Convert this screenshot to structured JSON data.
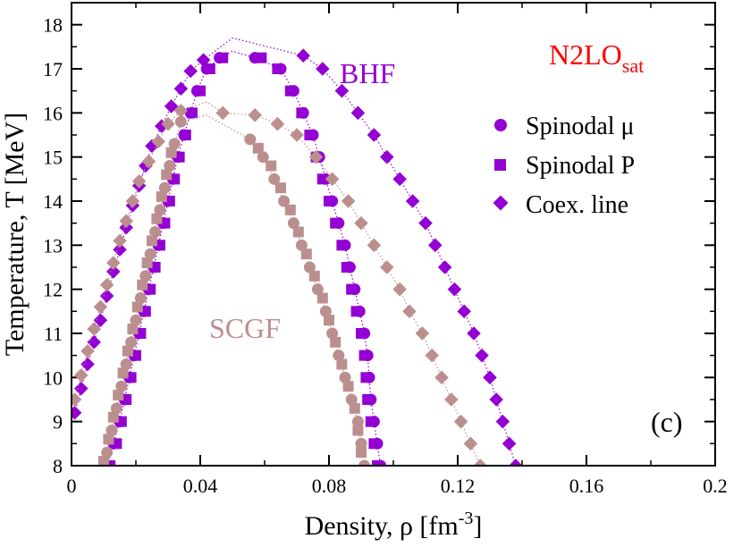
{
  "chart_data": {
    "type": "scatter",
    "title": "",
    "xlabel": "Density, ρ [fm",
    "xlabel_sup": "-3",
    "xlabel_end": "]",
    "ylabel": "Temperature, T [MeV]",
    "xlim": [
      0,
      0.2
    ],
    "ylim": [
      8,
      18.5
    ],
    "x_ticks": [
      0,
      0.04,
      0.08,
      0.12,
      0.16,
      0.2
    ],
    "x_tick_labels": [
      "0",
      "0.04",
      "0.08",
      "0.12",
      "0.16",
      "0.2"
    ],
    "y_ticks": [
      8,
      9,
      10,
      11,
      12,
      13,
      14,
      15,
      16,
      17,
      18
    ],
    "y_tick_labels": [
      "8",
      "9",
      "10",
      "11",
      "12",
      "13",
      "14",
      "15",
      "16",
      "17",
      "18"
    ],
    "interaction": "N2LO",
    "interaction_sub": "sat",
    "panel_label": "(c)",
    "legend": [
      {
        "label": "Spinodal μ",
        "marker": "circle"
      },
      {
        "label": "Spinodal P",
        "marker": "square"
      },
      {
        "label": "Coex. line",
        "marker": "diamond"
      }
    ],
    "curves": [
      {
        "name": "BHF",
        "color": "#9400D3",
        "critical_point": {
          "rho": 0.05,
          "T": 17.7
        },
        "spinodal_mu": {
          "left": [
            [
              0.011,
              8
            ],
            [
              0.013,
              8.5
            ],
            [
              0.015,
              9
            ],
            [
              0.0165,
              9.5
            ],
            [
              0.018,
              10
            ],
            [
              0.0195,
              10.5
            ],
            [
              0.021,
              11
            ],
            [
              0.0225,
              11.5
            ],
            [
              0.024,
              12
            ],
            [
              0.0255,
              12.5
            ],
            [
              0.027,
              13
            ],
            [
              0.0285,
              13.5
            ],
            [
              0.03,
              14
            ],
            [
              0.0315,
              14.5
            ],
            [
              0.033,
              15
            ],
            [
              0.035,
              15.5
            ],
            [
              0.037,
              16
            ],
            [
              0.039,
              16.5
            ],
            [
              0.042,
              17
            ],
            [
              0.046,
              17.25
            ]
          ],
          "right": [
            [
              0.096,
              8
            ],
            [
              0.095,
              8.5
            ],
            [
              0.094,
              9
            ],
            [
              0.093,
              9.5
            ],
            [
              0.0925,
              10
            ],
            [
              0.092,
              10.5
            ],
            [
              0.091,
              11
            ],
            [
              0.0895,
              11.5
            ],
            [
              0.088,
              12
            ],
            [
              0.0865,
              12.5
            ],
            [
              0.085,
              13
            ],
            [
              0.083,
              13.5
            ],
            [
              0.081,
              14
            ],
            [
              0.079,
              14.5
            ],
            [
              0.077,
              15
            ],
            [
              0.075,
              15.5
            ],
            [
              0.072,
              16
            ],
            [
              0.069,
              16.5
            ],
            [
              0.065,
              17
            ],
            [
              0.057,
              17.25
            ]
          ]
        },
        "spinodal_P": {
          "left": [
            [
              0.012,
              8
            ],
            [
              0.014,
              8.5
            ],
            [
              0.0155,
              9
            ],
            [
              0.017,
              9.5
            ],
            [
              0.0185,
              10
            ],
            [
              0.02,
              10.5
            ],
            [
              0.0215,
              11
            ],
            [
              0.023,
              11.5
            ],
            [
              0.0245,
              12
            ],
            [
              0.026,
              12.5
            ],
            [
              0.0275,
              13
            ],
            [
              0.029,
              13.5
            ],
            [
              0.0305,
              14
            ],
            [
              0.032,
              14.5
            ],
            [
              0.0335,
              15
            ],
            [
              0.0355,
              15.5
            ],
            [
              0.0375,
              16
            ],
            [
              0.04,
              16.5
            ],
            [
              0.043,
              17
            ],
            [
              0.047,
              17.25
            ]
          ],
          "right": [
            [
              0.095,
              8
            ],
            [
              0.094,
              8.5
            ],
            [
              0.093,
              9
            ],
            [
              0.092,
              9.5
            ],
            [
              0.0915,
              10
            ],
            [
              0.091,
              10.5
            ],
            [
              0.09,
              11
            ],
            [
              0.0885,
              11.5
            ],
            [
              0.087,
              12
            ],
            [
              0.0855,
              12.5
            ],
            [
              0.084,
              13
            ],
            [
              0.082,
              13.5
            ],
            [
              0.08,
              14
            ],
            [
              0.078,
              14.5
            ],
            [
              0.076,
              15
            ],
            [
              0.074,
              15.5
            ],
            [
              0.0715,
              16
            ],
            [
              0.068,
              16.5
            ],
            [
              0.064,
              17
            ],
            [
              0.059,
              17.25
            ]
          ]
        },
        "coexistence": {
          "left": [
            [
              0.001,
              9.2
            ],
            [
              0.003,
              9.75
            ],
            [
              0.005,
              10.3
            ],
            [
              0.007,
              10.8
            ],
            [
              0.009,
              11.3
            ],
            [
              0.011,
              11.85
            ],
            [
              0.013,
              12.4
            ],
            [
              0.015,
              12.9
            ],
            [
              0.017,
              13.4
            ],
            [
              0.019,
              13.9
            ],
            [
              0.021,
              14.35
            ],
            [
              0.023,
              14.8
            ],
            [
              0.025,
              15.25
            ],
            [
              0.028,
              15.7
            ],
            [
              0.031,
              16.15
            ],
            [
              0.034,
              16.55
            ],
            [
              0.037,
              16.95
            ],
            [
              0.041,
              17.2
            ]
          ],
          "right": [
            [
              0.138,
              8
            ],
            [
              0.136,
              8.5
            ],
            [
              0.134,
              9
            ],
            [
              0.132,
              9.5
            ],
            [
              0.13,
              10
            ],
            [
              0.1275,
              10.5
            ],
            [
              0.125,
              11
            ],
            [
              0.122,
              11.5
            ],
            [
              0.119,
              12
            ],
            [
              0.116,
              12.5
            ],
            [
              0.113,
              13
            ],
            [
              0.11,
              13.5
            ],
            [
              0.106,
              14
            ],
            [
              0.102,
              14.5
            ],
            [
              0.098,
              15
            ],
            [
              0.094,
              15.5
            ],
            [
              0.089,
              16
            ],
            [
              0.084,
              16.5
            ],
            [
              0.078,
              17
            ],
            [
              0.072,
              17.3
            ]
          ]
        }
      },
      {
        "name": "SCGF",
        "color": "#BC8F8F",
        "critical_point": {
          "rho": 0.042,
          "T": 16.25
        },
        "spinodal_mu": {
          "left": [
            [
              0.011,
              8.3
            ],
            [
              0.0125,
              8.8
            ],
            [
              0.014,
              9.3
            ],
            [
              0.0155,
              9.8
            ],
            [
              0.017,
              10.3
            ],
            [
              0.0185,
              10.8
            ],
            [
              0.02,
              11.3
            ],
            [
              0.0215,
              11.8
            ],
            [
              0.023,
              12.3
            ],
            [
              0.0245,
              12.8
            ],
            [
              0.026,
              13.3
            ],
            [
              0.0275,
              13.8
            ],
            [
              0.029,
              14.3
            ],
            [
              0.0305,
              14.8
            ],
            [
              0.032,
              15.3
            ],
            [
              0.034,
              15.8
            ]
          ],
          "right": [
            [
              0.091,
              8
            ],
            [
              0.09,
              8.5
            ],
            [
              0.089,
              9
            ],
            [
              0.087,
              9.5
            ],
            [
              0.085,
              10
            ],
            [
              0.083,
              10.5
            ],
            [
              0.081,
              11
            ],
            [
              0.079,
              11.5
            ],
            [
              0.0765,
              12
            ],
            [
              0.074,
              12.5
            ],
            [
              0.0715,
              13
            ],
            [
              0.069,
              13.5
            ],
            [
              0.066,
              14
            ],
            [
              0.063,
              14.5
            ],
            [
              0.0595,
              15
            ],
            [
              0.0555,
              15.4
            ]
          ]
        },
        "spinodal_P": {
          "left": [
            [
              0.01,
              8.1
            ],
            [
              0.0115,
              8.6
            ],
            [
              0.013,
              9.1
            ],
            [
              0.0145,
              9.6
            ],
            [
              0.016,
              10.1
            ],
            [
              0.0175,
              10.6
            ],
            [
              0.019,
              11.1
            ],
            [
              0.0205,
              11.6
            ],
            [
              0.022,
              12.1
            ],
            [
              0.0235,
              12.6
            ],
            [
              0.025,
              13.1
            ],
            [
              0.0265,
              13.6
            ],
            [
              0.028,
              14.1
            ],
            [
              0.0295,
              14.6
            ],
            [
              0.031,
              15.1
            ]
          ],
          "right": [
            [
              0.09,
              8.3
            ],
            [
              0.089,
              8.8
            ],
            [
              0.088,
              9.3
            ],
            [
              0.086,
              9.8
            ],
            [
              0.084,
              10.3
            ],
            [
              0.082,
              10.8
            ],
            [
              0.08,
              11.3
            ],
            [
              0.078,
              11.8
            ],
            [
              0.0755,
              12.3
            ],
            [
              0.073,
              12.8
            ],
            [
              0.0705,
              13.3
            ],
            [
              0.068,
              13.8
            ],
            [
              0.065,
              14.3
            ],
            [
              0.062,
              14.8
            ],
            [
              0.058,
              15.2
            ]
          ]
        },
        "coexistence": {
          "left": [
            [
              0.001,
              9.5
            ],
            [
              0.003,
              10.05
            ],
            [
              0.005,
              10.6
            ],
            [
              0.007,
              11.1
            ],
            [
              0.009,
              11.6
            ],
            [
              0.011,
              12.1
            ],
            [
              0.013,
              12.6
            ],
            [
              0.015,
              13.1
            ],
            [
              0.017,
              13.55
            ],
            [
              0.019,
              14
            ],
            [
              0.021,
              14.45
            ],
            [
              0.024,
              14.9
            ],
            [
              0.027,
              15.35
            ],
            [
              0.03,
              15.75
            ],
            [
              0.034,
              16.05
            ]
          ],
          "right": [
            [
              0.127,
              8
            ],
            [
              0.124,
              8.5
            ],
            [
              0.121,
              9
            ],
            [
              0.118,
              9.5
            ],
            [
              0.115,
              10
            ],
            [
              0.112,
              10.5
            ],
            [
              0.109,
              11
            ],
            [
              0.105,
              11.5
            ],
            [
              0.102,
              12
            ],
            [
              0.098,
              12.5
            ],
            [
              0.094,
              13
            ],
            [
              0.09,
              13.5
            ],
            [
              0.086,
              14
            ],
            [
              0.081,
              14.5
            ],
            [
              0.076,
              15
            ],
            [
              0.07,
              15.5
            ],
            [
              0.064,
              15.75
            ],
            [
              0.057,
              15.95
            ],
            [
              0.047,
              16
            ]
          ]
        }
      }
    ]
  }
}
